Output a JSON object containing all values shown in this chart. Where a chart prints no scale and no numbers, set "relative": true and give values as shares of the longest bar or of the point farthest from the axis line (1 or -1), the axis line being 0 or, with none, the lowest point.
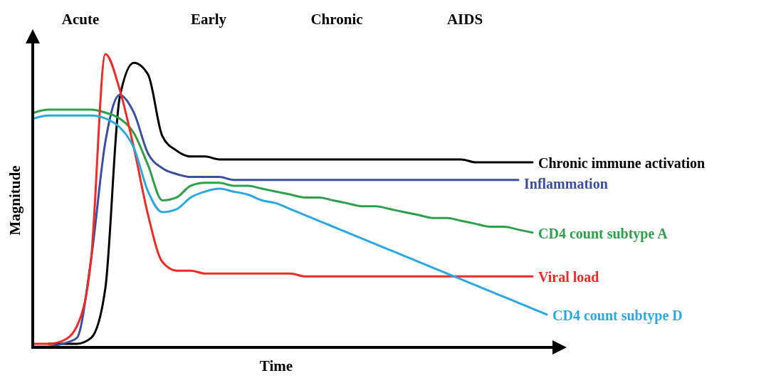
{
  "chart_data": {
    "type": "line",
    "relative": true,
    "xlabel": "Time",
    "ylabel": "Magnitude",
    "line_style": "solid",
    "annotations": [
      "Acute",
      "Early",
      "Chronic",
      "AIDS"
    ],
    "categories": [
      null,
      null,
      null,
      null,
      null,
      null,
      null,
      null,
      null,
      null,
      null,
      null,
      null,
      null,
      null,
      null,
      null,
      null,
      null,
      null,
      null,
      null,
      null,
      null,
      null,
      null,
      null,
      null,
      null,
      null,
      null,
      null,
      null,
      null,
      null,
      null,
      null
    ],
    "series": [
      {
        "name": "Chronic immune activation",
        "color": "#000000",
        "values": [
          null,
          0.01,
          0.01,
          0.01,
          0.03,
          0.2,
          0.85,
          0.97,
          0.93,
          0.72,
          0.67,
          0.65,
          0.65,
          0.64,
          0.64,
          0.64,
          0.64,
          0.64,
          0.64,
          0.64,
          0.64,
          0.64,
          0.64,
          0.64,
          0.64,
          0.64,
          0.64,
          0.64,
          0.64,
          0.64,
          0.64,
          0.63,
          0.63,
          0.63,
          0.63,
          0.63,
          null
        ]
      },
      {
        "name": "Inflammation",
        "color": "#3b4fa0",
        "values": [
          0,
          0,
          0.01,
          0.03,
          0.3,
          0.7,
          0.86,
          0.8,
          0.66,
          0.61,
          0.59,
          0.58,
          0.58,
          0.58,
          0.57,
          0.57,
          0.57,
          0.57,
          0.57,
          0.57,
          0.57,
          0.57,
          0.57,
          0.57,
          0.57,
          0.57,
          0.57,
          0.57,
          0.57,
          0.57,
          0.57,
          0.57,
          0.57,
          0.57,
          0.57,
          null,
          null
        ]
      },
      {
        "name": "CD4 count subtype A",
        "color": "#2ca04a",
        "values": [
          0.8,
          0.81,
          0.81,
          0.81,
          0.81,
          0.8,
          0.78,
          0.73,
          0.62,
          0.5,
          0.51,
          0.55,
          0.56,
          0.56,
          0.55,
          0.55,
          0.54,
          0.53,
          0.52,
          0.51,
          0.51,
          0.5,
          0.49,
          0.48,
          0.48,
          0.47,
          0.46,
          0.45,
          0.44,
          0.44,
          0.43,
          0.42,
          0.41,
          0.41,
          0.4,
          0.39,
          null
        ]
      },
      {
        "name": "Viral load",
        "color": "#ee2b24",
        "values": [
          0.01,
          0.01,
          0.02,
          0.07,
          0.3,
          1,
          0.88,
          0.68,
          0.45,
          0.29,
          0.26,
          0.26,
          0.25,
          0.25,
          0.25,
          0.25,
          0.25,
          0.25,
          0.25,
          0.24,
          0.24,
          0.24,
          0.24,
          0.24,
          0.24,
          0.24,
          0.24,
          0.24,
          0.24,
          0.24,
          0.24,
          0.24,
          0.24,
          0.24,
          0.24,
          0.24,
          null
        ]
      },
      {
        "name": "CD4 count subtype D",
        "color": "#29a9e0",
        "values": [
          0.78,
          0.79,
          0.79,
          0.79,
          0.79,
          0.78,
          0.75,
          0.68,
          0.53,
          0.46,
          0.47,
          0.51,
          0.53,
          0.54,
          0.53,
          0.52,
          0.5,
          0.49,
          0.47,
          0.45,
          0.43,
          0.41,
          0.39,
          0.37,
          0.35,
          0.33,
          0.31,
          0.29,
          0.27,
          0.25,
          0.23,
          0.21,
          0.19,
          0.17,
          0.15,
          0.13,
          0.11
        ]
      }
    ]
  }
}
